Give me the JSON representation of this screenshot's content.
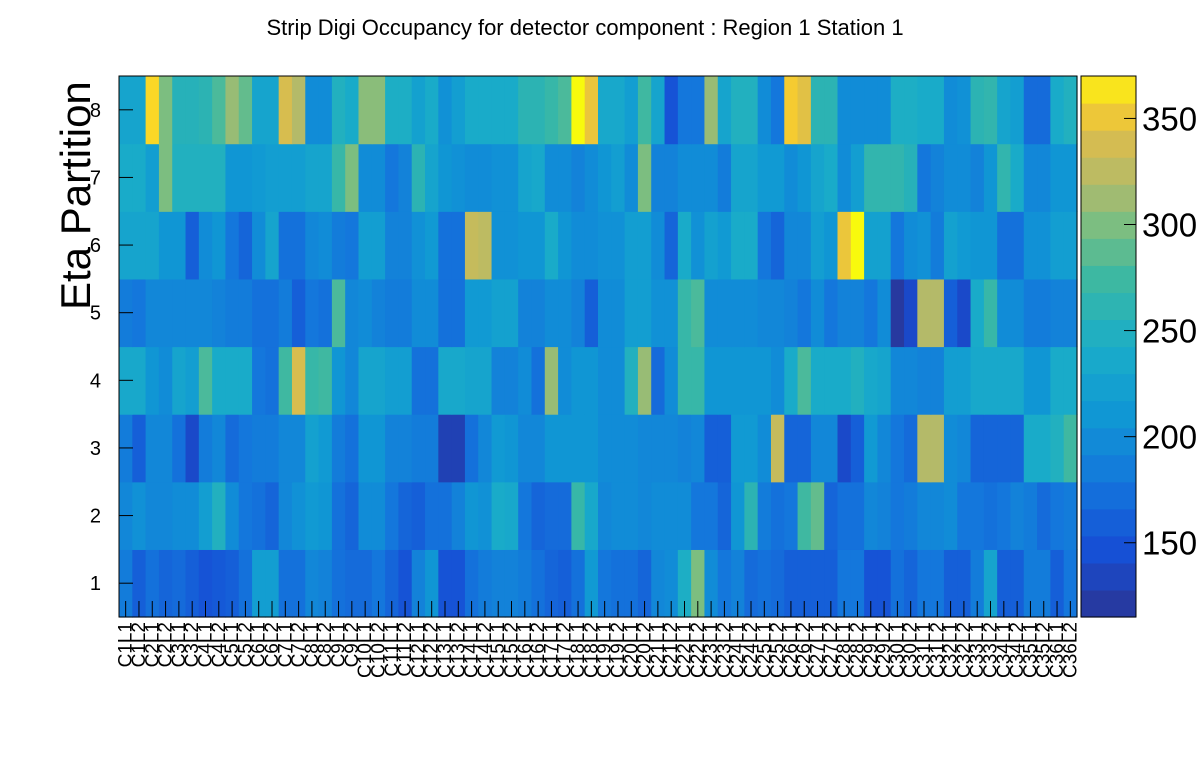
{
  "chart_data": {
    "type": "heatmap",
    "title": "Strip Digi Occupancy for detector component : Region 1 Station 1",
    "ylabel": "Eta Partition",
    "xlabel": "",
    "x_categories": [
      "C1L1",
      "C1L2",
      "C2L1",
      "C2L2",
      "C3L1",
      "C3L2",
      "C4L1",
      "C4L2",
      "C5L1",
      "C5L2",
      "C6L1",
      "C6L2",
      "C7L1",
      "C7L2",
      "C8L1",
      "C8L2",
      "C9L1",
      "C9L2",
      "C10L1",
      "C10L2",
      "C11L1",
      "C11L2",
      "C12L1",
      "C12L2",
      "C13L1",
      "C13L2",
      "C14L1",
      "C14L2",
      "C15L1",
      "C15L2",
      "C16L1",
      "C16L2",
      "C17L1",
      "C17L2",
      "C18L1",
      "C18L2",
      "C19L1",
      "C19L2",
      "C20L1",
      "C20L2",
      "C21L1",
      "C21L2",
      "C22L1",
      "C22L2",
      "C23L1",
      "C23L2",
      "C24L1",
      "C24L2",
      "C25L1",
      "C25L2",
      "C26L1",
      "C26L2",
      "C27L1",
      "C27L2",
      "C28L1",
      "C28L2",
      "C29L1",
      "C29L2",
      "C30L1",
      "C30L2",
      "C31L1",
      "C31L2",
      "C32L1",
      "C32L2",
      "C33L1",
      "C33L2",
      "C34L1",
      "C34L2",
      "C35L1",
      "C35L2",
      "C36L1",
      "C36L2"
    ],
    "y_categories": [
      "1",
      "2",
      "3",
      "4",
      "5",
      "6",
      "7",
      "8"
    ],
    "z_range": [
      115,
      370
    ],
    "z_ticks": [
      150,
      200,
      250,
      300,
      350
    ],
    "rows": [
      [
        185,
        160,
        175,
        165,
        170,
        160,
        150,
        155,
        160,
        175,
        220,
        220,
        175,
        175,
        195,
        190,
        175,
        170,
        170,
        180,
        165,
        150,
        190,
        210,
        150,
        150,
        175,
        185,
        190,
        190,
        185,
        175,
        165,
        160,
        175,
        215,
        180,
        175,
        175,
        165,
        195,
        200,
        245,
        300,
        200,
        180,
        190,
        170,
        175,
        170,
        160,
        160,
        160,
        160,
        180,
        180,
        150,
        150,
        175,
        165,
        180,
        180,
        160,
        160,
        185,
        230,
        160,
        160,
        185,
        185,
        160,
        180
      ],
      [
        195,
        205,
        195,
        195,
        200,
        200,
        220,
        250,
        200,
        180,
        175,
        165,
        195,
        205,
        215,
        210,
        175,
        165,
        200,
        200,
        180,
        165,
        160,
        175,
        175,
        190,
        210,
        205,
        240,
        235,
        180,
        165,
        170,
        170,
        270,
        235,
        195,
        200,
        200,
        195,
        200,
        200,
        200,
        180,
        180,
        165,
        210,
        260,
        185,
        175,
        180,
        275,
        290,
        165,
        175,
        175,
        195,
        190,
        180,
        185,
        195,
        195,
        200,
        180,
        180,
        175,
        180,
        190,
        185,
        170,
        180,
        185
      ],
      [
        185,
        160,
        195,
        195,
        175,
        140,
        185,
        195,
        170,
        180,
        185,
        185,
        195,
        195,
        225,
        215,
        185,
        175,
        210,
        210,
        190,
        190,
        185,
        185,
        130,
        130,
        175,
        195,
        215,
        210,
        195,
        195,
        210,
        210,
        210,
        210,
        200,
        200,
        200,
        195,
        195,
        195,
        190,
        195,
        160,
        160,
        215,
        215,
        200,
        330,
        165,
        165,
        195,
        195,
        140,
        160,
        215,
        195,
        180,
        170,
        320,
        320,
        200,
        195,
        165,
        165,
        165,
        165,
        240,
        240,
        250,
        275
      ],
      [
        235,
        235,
        210,
        200,
        230,
        220,
        280,
        240,
        240,
        240,
        180,
        175,
        275,
        340,
        270,
        275,
        210,
        195,
        230,
        230,
        220,
        220,
        175,
        175,
        235,
        235,
        230,
        230,
        190,
        190,
        200,
        175,
        310,
        200,
        210,
        210,
        200,
        200,
        250,
        310,
        170,
        200,
        270,
        270,
        210,
        210,
        210,
        210,
        210,
        200,
        240,
        280,
        240,
        240,
        240,
        250,
        235,
        230,
        195,
        195,
        190,
        190,
        220,
        220,
        235,
        235,
        235,
        235,
        210,
        210,
        240,
        240
      ],
      [
        185,
        180,
        195,
        195,
        195,
        195,
        195,
        190,
        185,
        185,
        175,
        175,
        185,
        160,
        180,
        175,
        280,
        195,
        200,
        190,
        185,
        185,
        200,
        200,
        175,
        175,
        215,
        215,
        225,
        225,
        190,
        190,
        200,
        200,
        190,
        160,
        200,
        200,
        220,
        220,
        205,
        205,
        270,
        280,
        200,
        200,
        200,
        200,
        195,
        195,
        190,
        180,
        200,
        180,
        190,
        190,
        180,
        200,
        120,
        140,
        320,
        320,
        160,
        140,
        240,
        270,
        200,
        200,
        185,
        185,
        190,
        190
      ],
      [
        230,
        230,
        230,
        210,
        210,
        160,
        200,
        210,
        180,
        165,
        200,
        230,
        175,
        175,
        195,
        200,
        185,
        180,
        220,
        220,
        190,
        190,
        205,
        215,
        175,
        175,
        330,
        325,
        205,
        205,
        210,
        210,
        240,
        210,
        200,
        200,
        205,
        205,
        220,
        220,
        200,
        165,
        240,
        205,
        225,
        215,
        240,
        240,
        180,
        165,
        195,
        195,
        220,
        210,
        350,
        370,
        225,
        225,
        180,
        200,
        205,
        185,
        225,
        215,
        210,
        210,
        175,
        175,
        205,
        205,
        220,
        220
      ],
      [
        240,
        240,
        220,
        300,
        250,
        250,
        250,
        250,
        210,
        210,
        215,
        220,
        220,
        220,
        230,
        230,
        270,
        300,
        200,
        200,
        180,
        190,
        260,
        230,
        210,
        205,
        200,
        200,
        205,
        205,
        230,
        235,
        200,
        200,
        190,
        200,
        210,
        220,
        200,
        300,
        190,
        190,
        200,
        200,
        200,
        185,
        230,
        230,
        215,
        215,
        200,
        210,
        230,
        240,
        200,
        220,
        265,
        265,
        265,
        255,
        180,
        190,
        200,
        200,
        190,
        210,
        265,
        240,
        195,
        195,
        210,
        210
      ],
      [
        230,
        230,
        360,
        300,
        255,
        255,
        260,
        280,
        310,
        290,
        230,
        230,
        340,
        320,
        200,
        200,
        250,
        240,
        305,
        305,
        245,
        245,
        225,
        240,
        205,
        220,
        240,
        240,
        240,
        240,
        260,
        260,
        270,
        280,
        370,
        350,
        235,
        235,
        220,
        275,
        230,
        150,
        180,
        180,
        310,
        230,
        250,
        250,
        200,
        180,
        355,
        345,
        260,
        260,
        200,
        200,
        200,
        200,
        245,
        245,
        240,
        240,
        200,
        205,
        260,
        265,
        230,
        220,
        170,
        170,
        240,
        250
      ]
    ]
  }
}
